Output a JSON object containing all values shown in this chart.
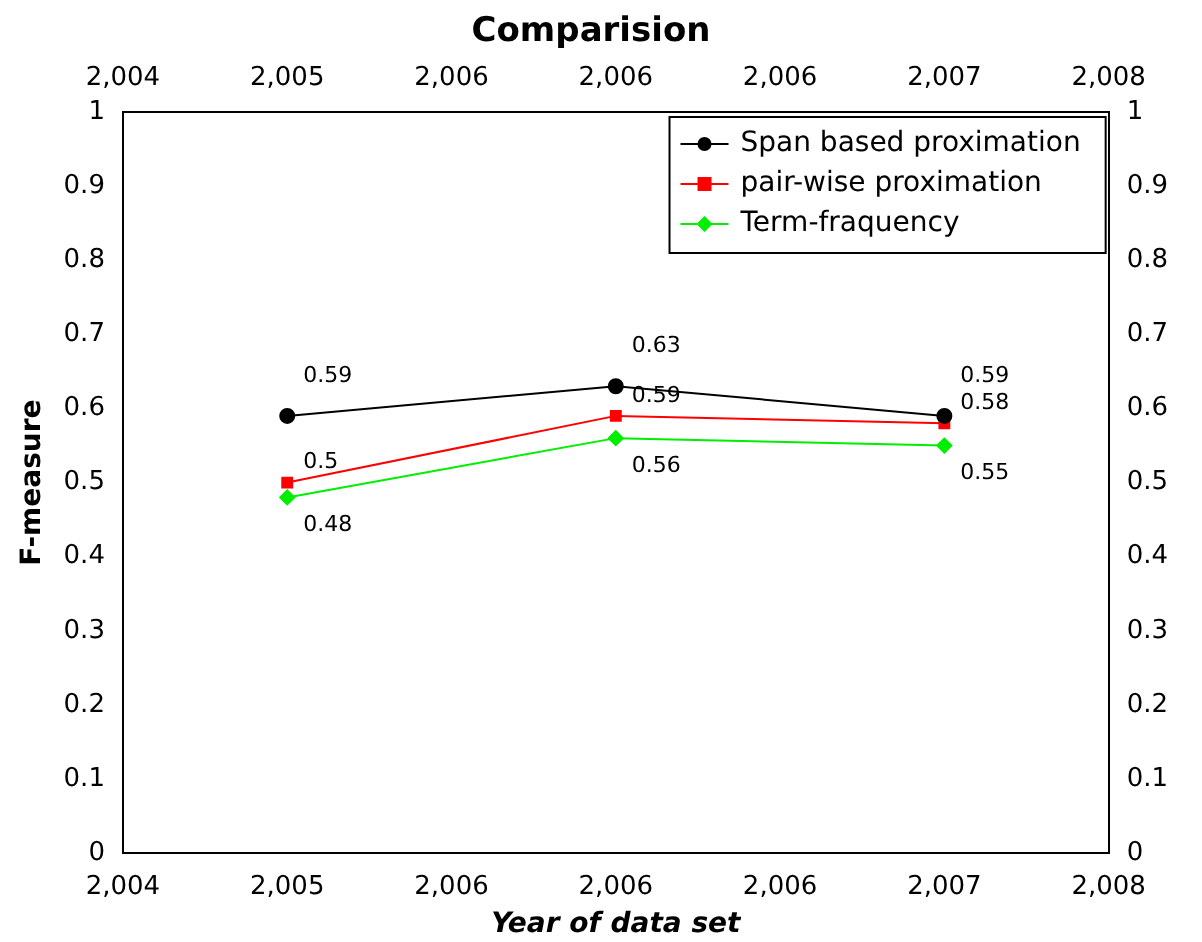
{
  "chart_data": {
    "type": "line",
    "title": "Comparision",
    "xlabel": "Year of data set",
    "ylabel": "F-measure",
    "x": [
      2005,
      2006,
      2007
    ],
    "series": [
      {
        "name": "Span based proximation",
        "color": "#000000",
        "marker": "circle",
        "values": [
          0.59,
          0.63,
          0.59
        ]
      },
      {
        "name": "pair-wise proximation",
        "color": "#ff0000",
        "marker": "square",
        "values": [
          0.5,
          0.59,
          0.58
        ]
      },
      {
        "name": "Term-fraquency",
        "color": "#00ee00",
        "marker": "diamond",
        "values": [
          0.48,
          0.56,
          0.55
        ]
      }
    ],
    "xlim": [
      2004.5,
      2007.5
    ],
    "xticks": [
      {
        "value": 2004.5,
        "label": "2,004"
      },
      {
        "value": 2005,
        "label": "2,005"
      },
      {
        "value": 2005.5,
        "label": "2,006"
      },
      {
        "value": 2006,
        "label": "2,006"
      },
      {
        "value": 2006.5,
        "label": "2,006"
      },
      {
        "value": 2007,
        "label": "2,007"
      },
      {
        "value": 2007.5,
        "label": "2,008"
      }
    ],
    "x2lim": [
      2004.5,
      2007.5
    ],
    "x2ticks": [
      {
        "value": 2004.5,
        "label": "2,004"
      },
      {
        "value": 2005,
        "label": "2,005"
      },
      {
        "value": 2005.5,
        "label": "2,006"
      },
      {
        "value": 2006,
        "label": "2,006"
      },
      {
        "value": 2006.5,
        "label": "2,006"
      },
      {
        "value": 2007,
        "label": "2,007"
      },
      {
        "value": 2007.5,
        "label": "2,008"
      }
    ],
    "ylim": [
      0,
      1
    ],
    "yticks": [
      0,
      0.1,
      0.2,
      0.3,
      0.4,
      0.5,
      0.6,
      0.7,
      0.8,
      0.9,
      1
    ],
    "y2lim": [
      0,
      1
    ],
    "y2ticks": [
      0,
      0.1,
      0.2,
      0.3,
      0.4,
      0.5,
      0.6,
      0.7,
      0.8,
      0.9,
      1
    ],
    "data_labels": true,
    "legend": "top right",
    "grid": false,
    "line_style": "solid"
  }
}
